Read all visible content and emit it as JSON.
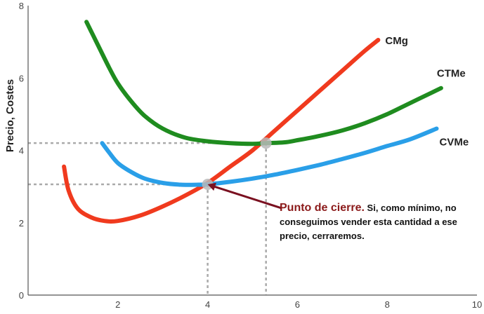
{
  "chart_data": {
    "type": "line",
    "ylabel": "Precio, Costes",
    "xlim": [
      0,
      10
    ],
    "ylim": [
      0,
      8
    ],
    "xticks": [
      2,
      4,
      6,
      8,
      10
    ],
    "yticks": [
      0,
      2,
      4,
      6,
      8
    ],
    "series": [
      {
        "name": "CMg",
        "color": "#f03a1e",
        "x": [
          0.8,
          0.9,
          1.1,
          1.4,
          1.7,
          2.0,
          2.5,
          3.0,
          3.5,
          4.0,
          4.5,
          5.0,
          5.5,
          6.0,
          6.5,
          7.0,
          7.5,
          7.8
        ],
        "y": [
          3.55,
          2.9,
          2.4,
          2.15,
          2.05,
          2.05,
          2.2,
          2.45,
          2.75,
          3.1,
          3.55,
          4.0,
          4.55,
          5.1,
          5.65,
          6.2,
          6.75,
          7.05
        ]
      },
      {
        "name": "CTMe",
        "color": "#1f8c1f",
        "x": [
          1.3,
          1.5,
          1.8,
          2.0,
          2.3,
          2.6,
          3.0,
          3.5,
          4.0,
          4.5,
          5.0,
          5.3,
          5.7,
          6.0,
          6.5,
          7.0,
          7.5,
          8.0,
          8.5,
          9.0,
          9.2
        ],
        "y": [
          7.55,
          7.05,
          6.3,
          5.85,
          5.35,
          4.95,
          4.6,
          4.35,
          4.25,
          4.2,
          4.18,
          4.2,
          4.22,
          4.28,
          4.4,
          4.55,
          4.75,
          5.0,
          5.3,
          5.6,
          5.72
        ]
      },
      {
        "name": "CVMe",
        "color": "#2a9fe8",
        "x": [
          1.65,
          1.8,
          2.0,
          2.3,
          2.6,
          3.0,
          3.4,
          3.8,
          4.0,
          4.5,
          5.0,
          5.5,
          6.0,
          6.5,
          7.0,
          7.5,
          8.0,
          8.5,
          9.1
        ],
        "y": [
          4.2,
          3.95,
          3.65,
          3.4,
          3.22,
          3.1,
          3.05,
          3.05,
          3.06,
          3.13,
          3.22,
          3.33,
          3.46,
          3.6,
          3.76,
          3.93,
          4.12,
          4.3,
          4.6
        ]
      }
    ],
    "points": [
      {
        "x": 4.0,
        "y": 3.06
      },
      {
        "x": 5.3,
        "y": 4.2
      }
    ],
    "annotation": {
      "title": "Punto de cierre.",
      "text": "Si, como mínimo, no conseguimos vender esta cantidad a ese precio, cerraremos.",
      "arrow_from": {
        "x": 5.65,
        "y": 2.4
      },
      "arrow_to": {
        "x": 4.0,
        "y": 3.06
      },
      "color": "#7a1020"
    }
  }
}
